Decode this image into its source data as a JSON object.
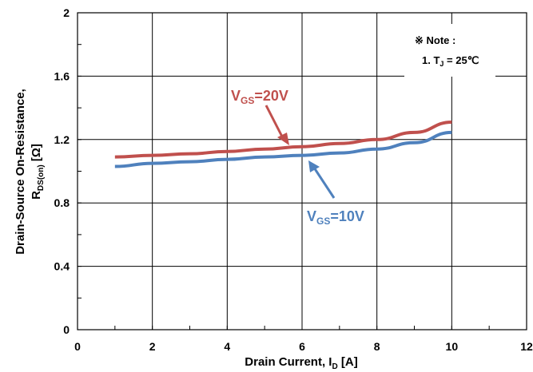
{
  "chart_data": {
    "type": "line",
    "xlabel": {
      "main": "Drain Current, I",
      "sub": "D",
      "unit": " [A]"
    },
    "ylabel": {
      "line1": "Drain-Source On-Resistance,",
      "main": "R",
      "sub": "DS(on)",
      "unit": " [Ω]"
    },
    "xlim": [
      0,
      12
    ],
    "ylim": [
      0,
      2
    ],
    "x_ticks": [
      0,
      2,
      4,
      6,
      8,
      10,
      12
    ],
    "y_ticks": [
      0,
      0.4,
      0.8,
      1.2,
      1.6,
      2
    ],
    "x_tick_labels": [
      "0",
      "2",
      "4",
      "6",
      "8",
      "10",
      "12"
    ],
    "y_tick_labels": [
      "0",
      "0.4",
      "0.8",
      "1.2",
      "1.6",
      "2"
    ],
    "grid": true,
    "series": [
      {
        "name": "V_GS=20V",
        "label_main": "V",
        "label_sub": "GS",
        "label_rest": "=20V",
        "color": "#c0504d",
        "x": [
          1,
          2,
          3,
          4,
          5,
          6,
          7,
          8,
          9,
          10
        ],
        "y": [
          1.09,
          1.1,
          1.11,
          1.125,
          1.14,
          1.155,
          1.175,
          1.2,
          1.245,
          1.31
        ]
      },
      {
        "name": "V_GS=10V",
        "label_main": "V",
        "label_sub": "GS",
        "label_rest": "=10V",
        "color": "#4f81bd",
        "x": [
          1,
          2,
          3,
          4,
          5,
          6,
          7,
          8,
          9,
          10
        ],
        "y": [
          1.03,
          1.05,
          1.06,
          1.075,
          1.09,
          1.1,
          1.115,
          1.14,
          1.18,
          1.245
        ]
      }
    ],
    "note": {
      "line1": "※ Note :",
      "line2_prefix": "1. T",
      "line2_sub": "J",
      "line2_suffix": " = 25℃"
    }
  }
}
